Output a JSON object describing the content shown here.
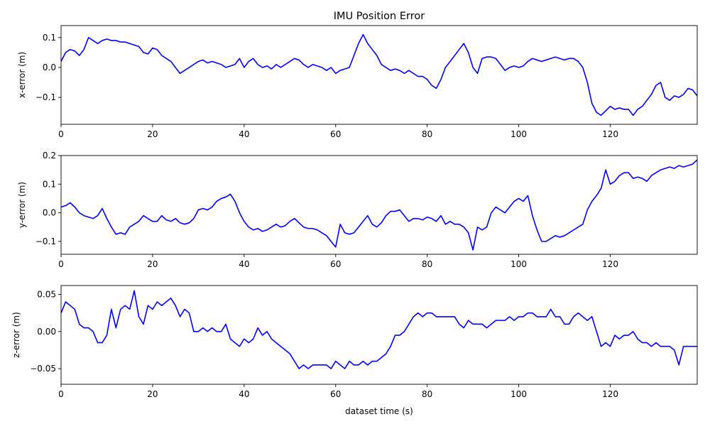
{
  "figure": {
    "title": "IMU Position Error",
    "xlabel": "dataset time (s)"
  },
  "chart_data": [
    {
      "type": "line",
      "ylabel": "x-error (m)",
      "xlim": [
        0,
        139
      ],
      "ylim": [
        -0.19,
        0.14
      ],
      "xticks": [
        0,
        20,
        40,
        60,
        80,
        100,
        120
      ],
      "yticks": [
        -0.1,
        0.0,
        0.1
      ],
      "ytick_labels": [
        "−0.1",
        "0.0",
        "0.1"
      ],
      "grid": false,
      "color": "#0000ff",
      "x": [
        0,
        1,
        2,
        3,
        4,
        5,
        6,
        7,
        8,
        9,
        10,
        11,
        12,
        13,
        14,
        15,
        16,
        17,
        18,
        19,
        20,
        21,
        22,
        23,
        24,
        25,
        26,
        27,
        28,
        29,
        30,
        31,
        32,
        33,
        34,
        35,
        36,
        37,
        38,
        39,
        40,
        41,
        42,
        43,
        44,
        45,
        46,
        47,
        48,
        49,
        50,
        51,
        52,
        53,
        54,
        55,
        56,
        57,
        58,
        59,
        60,
        61,
        62,
        63,
        64,
        65,
        66,
        67,
        68,
        69,
        70,
        71,
        72,
        73,
        74,
        75,
        76,
        77,
        78,
        79,
        80,
        81,
        82,
        83,
        84,
        85,
        86,
        87,
        88,
        89,
        90,
        91,
        92,
        93,
        94,
        95,
        96,
        97,
        98,
        99,
        100,
        101,
        102,
        103,
        104,
        105,
        106,
        107,
        108,
        109,
        110,
        111,
        112,
        113,
        114,
        115,
        116,
        117,
        118,
        119,
        120,
        121,
        122,
        123,
        124,
        125,
        126,
        127,
        128,
        129,
        130,
        131,
        132,
        133,
        134,
        135,
        136,
        137,
        138,
        139
      ],
      "y": [
        0.02,
        0.05,
        0.06,
        0.055,
        0.04,
        0.06,
        0.1,
        0.09,
        0.08,
        0.09,
        0.095,
        0.09,
        0.09,
        0.085,
        0.085,
        0.08,
        0.075,
        0.07,
        0.05,
        0.045,
        0.065,
        0.06,
        0.04,
        0.03,
        0.02,
        0.0,
        -0.02,
        -0.01,
        0.0,
        0.01,
        0.02,
        0.025,
        0.015,
        0.02,
        0.015,
        0.01,
        0.0,
        0.005,
        0.01,
        0.03,
        0.0,
        0.02,
        0.03,
        0.01,
        0.0,
        0.005,
        -0.005,
        0.01,
        0.0,
        0.01,
        0.02,
        0.03,
        0.025,
        0.01,
        0.0,
        0.01,
        0.005,
        0.0,
        -0.01,
        0.0,
        -0.02,
        -0.01,
        -0.005,
        0.0,
        0.04,
        0.08,
        0.11,
        0.08,
        0.06,
        0.04,
        0.01,
        0.0,
        -0.01,
        -0.005,
        -0.01,
        -0.02,
        -0.01,
        -0.02,
        -0.03,
        -0.03,
        -0.04,
        -0.06,
        -0.07,
        -0.04,
        0.0,
        0.02,
        0.04,
        0.06,
        0.08,
        0.05,
        0.0,
        -0.02,
        0.03,
        0.035,
        0.035,
        0.03,
        0.01,
        -0.01,
        0.0,
        0.005,
        0.0,
        0.005,
        0.02,
        0.03,
        0.025,
        0.02,
        0.025,
        0.03,
        0.035,
        0.03,
        0.025,
        0.03,
        0.03,
        0.02,
        0.0,
        -0.05,
        -0.12,
        -0.15,
        -0.16,
        -0.145,
        -0.13,
        -0.14,
        -0.135,
        -0.14,
        -0.14,
        -0.16,
        -0.14,
        -0.13,
        -0.11,
        -0.09,
        -0.06,
        -0.05,
        -0.1,
        -0.11,
        -0.095,
        -0.1,
        -0.09,
        -0.07,
        -0.075,
        -0.095
      ]
    },
    {
      "type": "line",
      "ylabel": "y-error (m)",
      "xlim": [
        0,
        139
      ],
      "ylim": [
        -0.145,
        0.2
      ],
      "xticks": [
        0,
        20,
        40,
        60,
        80,
        100,
        120
      ],
      "yticks": [
        -0.1,
        0.0,
        0.1,
        0.2
      ],
      "ytick_labels": [
        "−0.1",
        "0.0",
        "0.1",
        "0.2"
      ],
      "grid": false,
      "color": "#0000ff",
      "x": [
        0,
        1,
        2,
        3,
        4,
        5,
        6,
        7,
        8,
        9,
        10,
        11,
        12,
        13,
        14,
        15,
        16,
        17,
        18,
        19,
        20,
        21,
        22,
        23,
        24,
        25,
        26,
        27,
        28,
        29,
        30,
        31,
        32,
        33,
        34,
        35,
        36,
        37,
        38,
        39,
        40,
        41,
        42,
        43,
        44,
        45,
        46,
        47,
        48,
        49,
        50,
        51,
        52,
        53,
        54,
        55,
        56,
        57,
        58,
        59,
        60,
        61,
        62,
        63,
        64,
        65,
        66,
        67,
        68,
        69,
        70,
        71,
        72,
        73,
        74,
        75,
        76,
        77,
        78,
        79,
        80,
        81,
        82,
        83,
        84,
        85,
        86,
        87,
        88,
        89,
        90,
        91,
        92,
        93,
        94,
        95,
        96,
        97,
        98,
        99,
        100,
        101,
        102,
        103,
        104,
        105,
        106,
        107,
        108,
        109,
        110,
        111,
        112,
        113,
        114,
        115,
        116,
        117,
        118,
        119,
        120,
        121,
        122,
        123,
        124,
        125,
        126,
        127,
        128,
        129,
        130,
        131,
        132,
        133,
        134,
        135,
        136,
        137,
        138,
        139
      ],
      "y": [
        0.02,
        0.025,
        0.035,
        0.02,
        0.0,
        -0.01,
        -0.015,
        -0.02,
        -0.01,
        0.015,
        -0.02,
        -0.05,
        -0.075,
        -0.07,
        -0.075,
        -0.05,
        -0.04,
        -0.03,
        -0.01,
        -0.02,
        -0.03,
        -0.03,
        -0.01,
        -0.025,
        -0.03,
        -0.02,
        -0.035,
        -0.04,
        -0.035,
        -0.02,
        0.01,
        0.015,
        0.01,
        0.02,
        0.04,
        0.05,
        0.055,
        0.065,
        0.04,
        0.0,
        -0.03,
        -0.05,
        -0.06,
        -0.055,
        -0.065,
        -0.06,
        -0.05,
        -0.04,
        -0.05,
        -0.045,
        -0.03,
        -0.02,
        -0.035,
        -0.05,
        -0.055,
        -0.055,
        -0.06,
        -0.07,
        -0.08,
        -0.1,
        -0.12,
        -0.04,
        -0.07,
        -0.075,
        -0.07,
        -0.05,
        -0.03,
        -0.01,
        -0.04,
        -0.05,
        -0.035,
        -0.01,
        0.005,
        0.005,
        0.01,
        -0.01,
        -0.03,
        -0.02,
        -0.02,
        -0.025,
        -0.015,
        -0.02,
        -0.03,
        -0.01,
        -0.04,
        -0.03,
        -0.04,
        -0.04,
        -0.05,
        -0.07,
        -0.13,
        -0.05,
        -0.06,
        -0.05,
        0.0,
        0.02,
        0.01,
        0.0,
        0.02,
        0.04,
        0.05,
        0.04,
        0.06,
        -0.01,
        -0.06,
        -0.1,
        -0.1,
        -0.09,
        -0.08,
        -0.085,
        -0.08,
        -0.07,
        -0.06,
        -0.05,
        -0.04,
        0.01,
        0.04,
        0.06,
        0.085,
        0.15,
        0.1,
        0.11,
        0.13,
        0.14,
        0.14,
        0.12,
        0.125,
        0.12,
        0.11,
        0.13,
        0.14,
        0.15,
        0.155,
        0.16,
        0.155,
        0.165,
        0.16,
        0.165,
        0.17,
        0.185
      ]
    },
    {
      "type": "line",
      "ylabel": "z-error (m)",
      "xlim": [
        0,
        139
      ],
      "ylim": [
        -0.071,
        0.062
      ],
      "xticks": [
        0,
        20,
        40,
        60,
        80,
        100,
        120
      ],
      "xtick_labels": [
        "0",
        "20",
        "40",
        "60",
        "80",
        "100",
        "120"
      ],
      "yticks": [
        -0.05,
        0.0,
        0.05
      ],
      "ytick_labels": [
        "−0.05",
        "0.00",
        "0.05"
      ],
      "grid": false,
      "color": "#0000ff",
      "x": [
        0,
        1,
        2,
        3,
        4,
        5,
        6,
        7,
        8,
        9,
        10,
        11,
        12,
        13,
        14,
        15,
        16,
        17,
        18,
        19,
        20,
        21,
        22,
        23,
        24,
        25,
        26,
        27,
        28,
        29,
        30,
        31,
        32,
        33,
        34,
        35,
        36,
        37,
        38,
        39,
        40,
        41,
        42,
        43,
        44,
        45,
        46,
        47,
        48,
        49,
        50,
        51,
        52,
        53,
        54,
        55,
        56,
        57,
        58,
        59,
        60,
        61,
        62,
        63,
        64,
        65,
        66,
        67,
        68,
        69,
        70,
        71,
        72,
        73,
        74,
        75,
        76,
        77,
        78,
        79,
        80,
        81,
        82,
        83,
        84,
        85,
        86,
        87,
        88,
        89,
        90,
        91,
        92,
        93,
        94,
        95,
        96,
        97,
        98,
        99,
        100,
        101,
        102,
        103,
        104,
        105,
        106,
        107,
        108,
        109,
        110,
        111,
        112,
        113,
        114,
        115,
        116,
        117,
        118,
        119,
        120,
        121,
        122,
        123,
        124,
        125,
        126,
        127,
        128,
        129,
        130,
        131,
        132,
        133,
        134,
        135,
        136,
        137,
        138,
        139
      ],
      "y": [
        0.025,
        0.04,
        0.035,
        0.03,
        0.01,
        0.005,
        0.005,
        0.0,
        -0.015,
        -0.015,
        -0.005,
        0.03,
        0.005,
        0.03,
        0.035,
        0.03,
        0.055,
        0.02,
        0.01,
        0.035,
        0.03,
        0.04,
        0.035,
        0.04,
        0.045,
        0.035,
        0.02,
        0.03,
        0.025,
        0.0,
        0.0,
        0.005,
        0.0,
        0.005,
        0.0,
        0.0,
        0.01,
        -0.01,
        -0.015,
        -0.02,
        -0.01,
        -0.015,
        -0.01,
        0.005,
        -0.005,
        0.0,
        -0.01,
        -0.015,
        -0.02,
        -0.025,
        -0.03,
        -0.04,
        -0.05,
        -0.045,
        -0.05,
        -0.045,
        -0.045,
        -0.045,
        -0.045,
        -0.05,
        -0.04,
        -0.045,
        -0.05,
        -0.04,
        -0.045,
        -0.045,
        -0.04,
        -0.045,
        -0.04,
        -0.04,
        -0.035,
        -0.03,
        -0.02,
        -0.005,
        -0.005,
        0.0,
        0.01,
        0.02,
        0.025,
        0.02,
        0.025,
        0.025,
        0.02,
        0.02,
        0.02,
        0.02,
        0.02,
        0.01,
        0.005,
        0.015,
        0.01,
        0.01,
        0.01,
        0.005,
        0.01,
        0.015,
        0.015,
        0.015,
        0.02,
        0.015,
        0.02,
        0.02,
        0.025,
        0.025,
        0.02,
        0.02,
        0.02,
        0.03,
        0.02,
        0.02,
        0.01,
        0.01,
        0.02,
        0.025,
        0.02,
        0.015,
        0.02,
        0.0,
        -0.02,
        -0.015,
        -0.02,
        -0.005,
        -0.01,
        -0.005,
        -0.005,
        0.0,
        -0.01,
        -0.015,
        -0.015,
        -0.02,
        -0.015,
        -0.02,
        -0.02,
        -0.02,
        -0.025,
        -0.045,
        -0.02,
        -0.02,
        -0.02,
        -0.02
      ]
    }
  ]
}
